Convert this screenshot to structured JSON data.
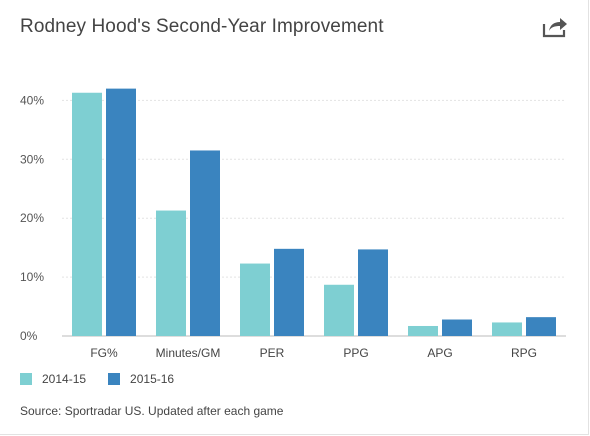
{
  "header": {
    "title": "Rodney Hood's Second-Year Improvement",
    "share_icon": "share-icon"
  },
  "chart_data": {
    "type": "bar",
    "categories": [
      "FG%",
      "Minutes/GM",
      "PER",
      "PPG",
      "APG",
      "RPG"
    ],
    "series": [
      {
        "name": "2014-15",
        "color": "#7ecfd2",
        "values": [
          41.3,
          21.3,
          12.3,
          8.7,
          1.7,
          2.3
        ]
      },
      {
        "name": "2015-16",
        "color": "#3a84bf",
        "values": [
          42.0,
          31.5,
          14.8,
          14.7,
          2.8,
          3.2
        ]
      }
    ],
    "yticks": [
      "0%",
      "10%",
      "20%",
      "30%",
      "40%"
    ],
    "ylim": [
      0,
      45
    ],
    "grid": true,
    "legend_position": "bottom-left"
  },
  "footer": {
    "source": "Source: Sportradar US. Updated after each game"
  }
}
